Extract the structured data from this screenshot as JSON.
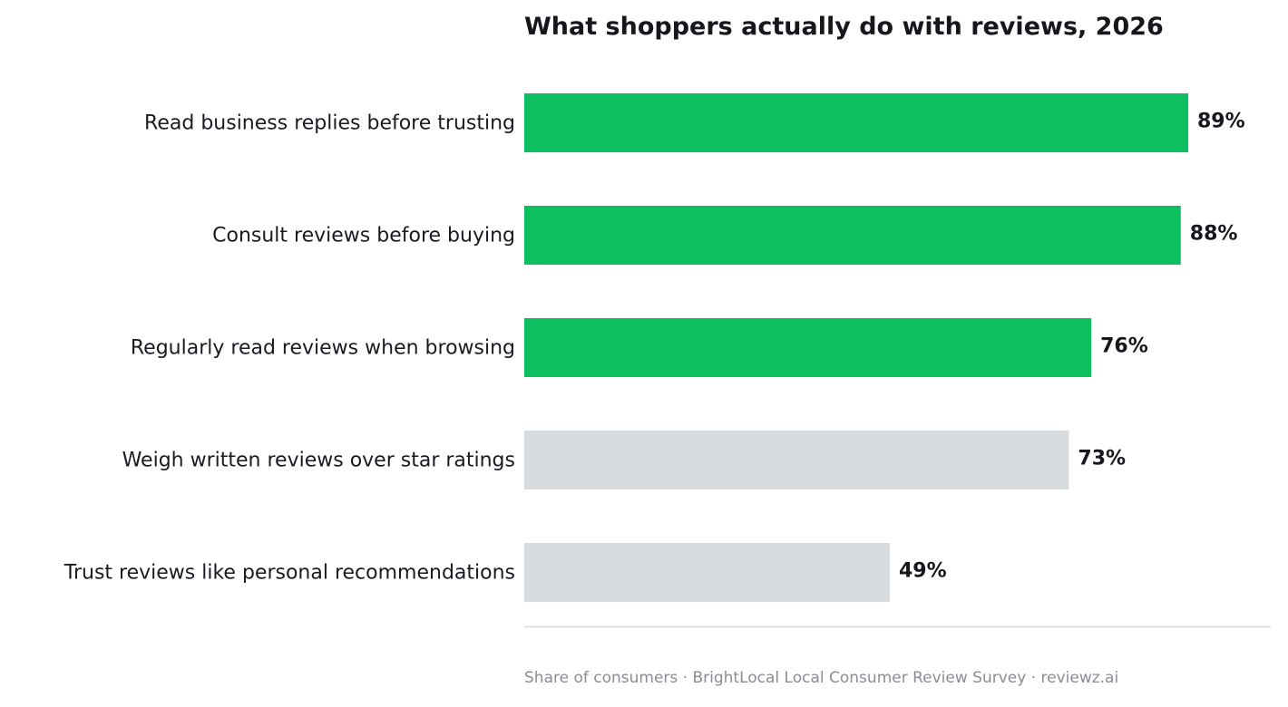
{
  "chart_data": {
    "type": "bar",
    "orientation": "horizontal",
    "title": "What shoppers actually do with reviews, 2026",
    "categories": [
      "Read business replies before trusting",
      "Consult reviews before buying",
      "Regularly read reviews when browsing",
      "Weigh written reviews over star ratings",
      "Trust reviews like personal recommendations"
    ],
    "values": [
      89,
      88,
      76,
      73,
      49
    ],
    "value_labels": [
      "89%",
      "88%",
      "76%",
      "73%",
      "49%"
    ],
    "bar_colors": [
      "#0dbf5f",
      "#0dbf5f",
      "#0dbf5f",
      "#d7dbde",
      "#d7dbde"
    ],
    "xlim": [
      0,
      100
    ],
    "xlabel": "",
    "ylabel": "",
    "grid": false,
    "legend": "none",
    "footnote": "Share of consumers · BrightLocal Local Consumer Review Survey · reviewz.ai"
  },
  "colors": {
    "highlight": "#0dbf5f",
    "muted": "#d7dbde",
    "text": "#16161d",
    "axis_line": "#d9dbdf",
    "footnote": "#8a8d96"
  }
}
